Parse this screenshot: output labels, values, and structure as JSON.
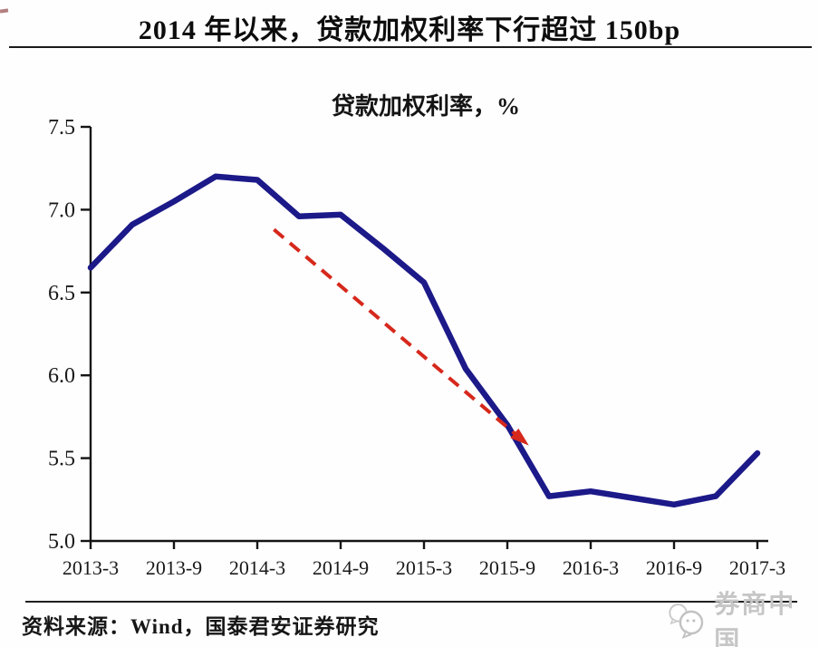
{
  "page": {
    "title": "2014 年以来，贷款加权利率下行超过 150bp",
    "source_note": "资料来源：Wind，国泰君安证券研究",
    "watermark": {
      "text": "券商中国",
      "icon": "chat-bubbles-icon",
      "color": "#c6c6c6"
    }
  },
  "chart_data": {
    "type": "line",
    "title": "贷款加权利率，%",
    "categories": [
      "2013-3",
      "2013-6",
      "2013-9",
      "2013-12",
      "2014-3",
      "2014-6",
      "2014-9",
      "2014-12",
      "2015-3",
      "2015-6",
      "2015-9",
      "2015-12",
      "2016-3",
      "2016-6",
      "2016-9",
      "2016-12",
      "2017-3"
    ],
    "values": [
      6.65,
      6.91,
      7.05,
      7.2,
      7.18,
      6.96,
      6.97,
      6.77,
      6.56,
      6.04,
      5.7,
      5.27,
      5.3,
      5.26,
      5.22,
      5.27,
      5.53
    ],
    "x_tick_labels": [
      "2013-3",
      "2013-9",
      "2014-3",
      "2014-9",
      "2015-3",
      "2015-9",
      "2016-3",
      "2016-9",
      "2017-3"
    ],
    "y_ticks": [
      5.0,
      5.5,
      6.0,
      6.5,
      7.0,
      7.5
    ],
    "ylim": [
      5.0,
      7.5
    ],
    "grid": false,
    "legend": "none",
    "line_color": "#1c1989",
    "annotation": {
      "type": "trend-arrow",
      "style": "dashed",
      "color": "#d6281c",
      "from": {
        "x_index": 4.4,
        "value": 6.88
      },
      "to": {
        "x_index": 10.5,
        "value": 5.58
      }
    }
  }
}
